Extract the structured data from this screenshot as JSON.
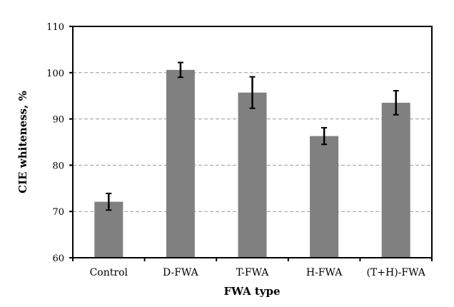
{
  "chart_data": {
    "type": "bar",
    "title": "",
    "xlabel": "FWA type",
    "ylabel": "CIE whiteness, %",
    "categories": [
      "Control",
      "D-FWA",
      "T-FWA",
      "H-FWA",
      "(T+H)-FWA"
    ],
    "values": [
      72.1,
      100.6,
      95.7,
      86.3,
      93.5
    ],
    "errors": [
      1.8,
      1.6,
      3.4,
      1.8,
      2.6
    ],
    "ylim": [
      60,
      110
    ],
    "yticks": [
      "60",
      "70",
      "80",
      "90",
      "100",
      "110"
    ],
    "grid": "horizontal dashed",
    "legend": "none",
    "bar_color": "#808080",
    "error_color": "#000000",
    "grid_color": "#999999"
  }
}
